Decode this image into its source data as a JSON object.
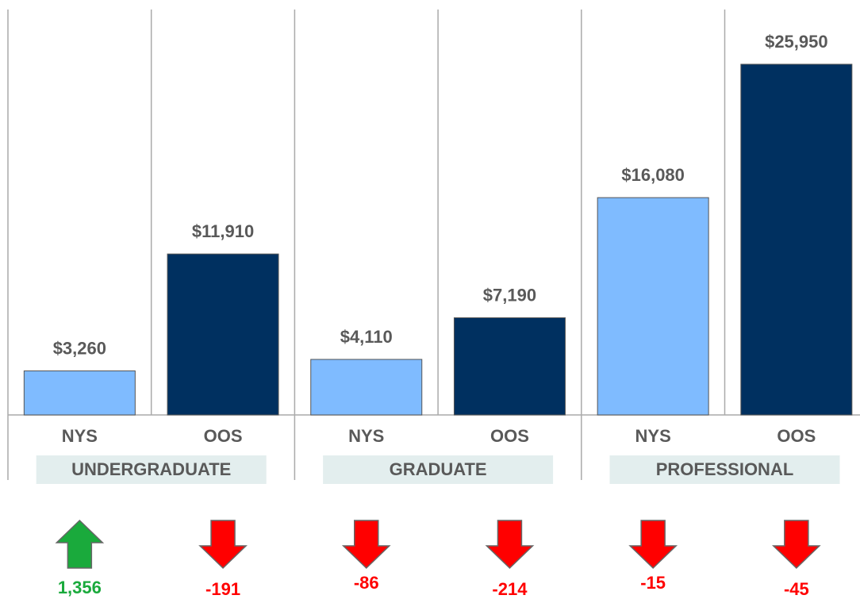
{
  "chart_data": {
    "type": "bar",
    "categories": [
      "NYS",
      "OOS",
      "NYS",
      "OOS",
      "NYS",
      "OOS"
    ],
    "values": [
      3260,
      11910,
      4110,
      7190,
      16080,
      25950
    ],
    "value_labels": [
      "$3,260",
      "$11,910",
      "$4,110",
      "$7,190",
      "$16,080",
      "$25,950"
    ],
    "colors": [
      "#7fbbff",
      "#003060",
      "#7fbbff",
      "#003060",
      "#7fbbff",
      "#003060"
    ],
    "groups": [
      "UNDERGRADUATE",
      "GRADUATE",
      "PROFESSIONAL"
    ],
    "ylim": [
      0,
      30000
    ],
    "changes": {
      "values": [
        1356,
        -191,
        -86,
        -214,
        -15,
        -45
      ],
      "value_labels": [
        "1,356",
        "-191",
        "-86",
        "-214",
        "-15",
        "-45"
      ],
      "up_color": "#1aaa3c",
      "down_color": "#ff0000"
    }
  }
}
